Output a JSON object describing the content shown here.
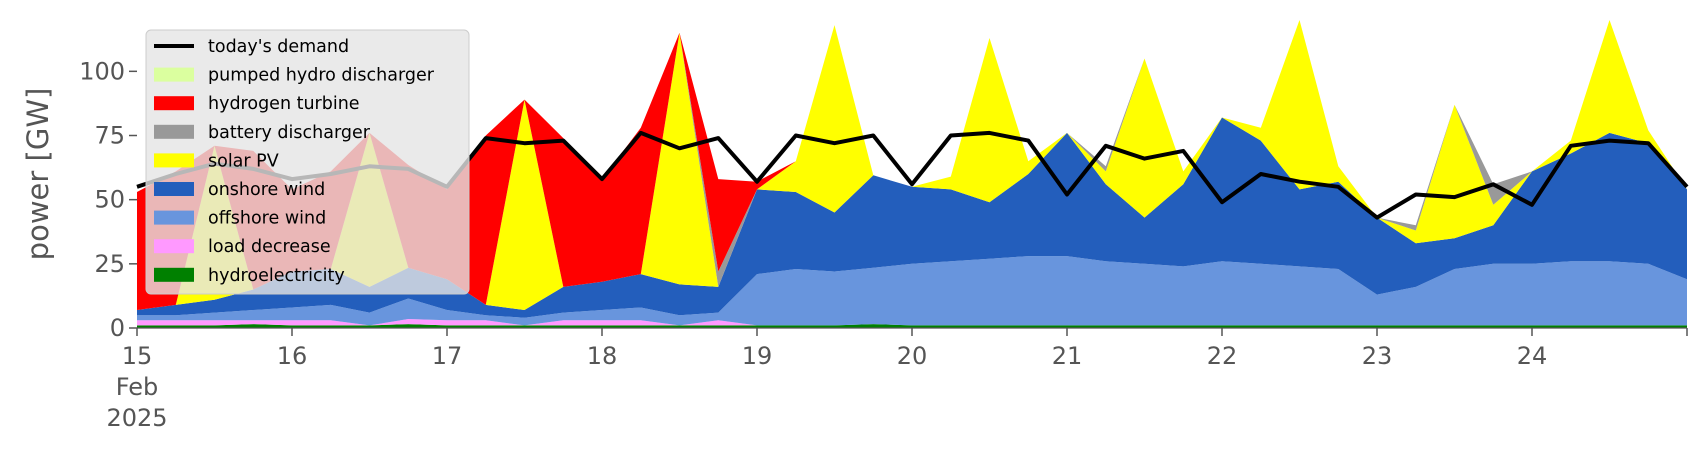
{
  "chart_data": {
    "type": "area",
    "ylabel": "power [GW]",
    "xlabel": "",
    "ylim": [
      0,
      120
    ],
    "xlim": [
      15,
      25
    ],
    "grid": false,
    "legend_position": "top-left",
    "yticks": [
      0,
      25,
      50,
      75,
      100
    ],
    "xticks": [
      {
        "value": 15,
        "lines": [
          "15",
          "Feb",
          "2025"
        ]
      },
      {
        "value": 16,
        "lines": [
          "16"
        ]
      },
      {
        "value": 17,
        "lines": [
          "17"
        ]
      },
      {
        "value": 18,
        "lines": [
          "18"
        ]
      },
      {
        "value": 19,
        "lines": [
          "19"
        ]
      },
      {
        "value": 20,
        "lines": [
          "20"
        ]
      },
      {
        "value": 21,
        "lines": [
          "21"
        ]
      },
      {
        "value": 22,
        "lines": [
          "22"
        ]
      },
      {
        "value": 23,
        "lines": [
          "23"
        ]
      },
      {
        "value": 24,
        "lines": [
          "24"
        ]
      }
    ],
    "x": [
      15.0,
      15.25,
      15.5,
      15.75,
      16.0,
      16.25,
      16.5,
      16.75,
      17.0,
      17.25,
      17.5,
      17.75,
      18.0,
      18.25,
      18.5,
      18.75,
      19.0,
      19.25,
      19.5,
      19.75,
      20.0,
      20.25,
      20.5,
      20.75,
      21.0,
      21.25,
      21.5,
      21.75,
      22.0,
      22.25,
      22.5,
      22.75,
      23.0,
      23.25,
      23.5,
      23.75,
      24.0,
      24.25,
      24.5,
      24.75,
      25.0
    ],
    "series": [
      {
        "name": "hydroelectricity",
        "color": "#008000",
        "values": [
          1,
          1,
          1,
          1.5,
          1,
          1,
          1,
          1.5,
          1,
          1,
          1,
          1,
          1,
          1,
          1,
          1,
          1,
          1,
          1,
          1.5,
          1,
          1,
          1,
          1,
          1,
          1,
          1,
          1,
          1,
          1,
          1,
          1,
          1,
          1,
          1,
          1,
          1,
          1,
          1,
          1,
          1
        ]
      },
      {
        "name": "load decrease",
        "color": "#ff99ff",
        "values": [
          2,
          2,
          2,
          1.5,
          2,
          2,
          0,
          2,
          2,
          2,
          0,
          2,
          2,
          2,
          0,
          2,
          0,
          0,
          0,
          0,
          0,
          0,
          0,
          0,
          0,
          0,
          0,
          0,
          0,
          0,
          0,
          0,
          0,
          0,
          0,
          0,
          0,
          0,
          0,
          0,
          0
        ]
      },
      {
        "name": "offshore wind",
        "color": "#6895dd",
        "values": [
          2,
          2,
          3,
          4,
          5,
          6,
          5,
          8,
          4,
          2,
          3,
          3,
          4,
          5,
          4,
          3,
          20,
          22,
          21,
          22,
          24,
          25,
          26,
          27,
          27,
          25,
          24,
          23,
          25,
          24,
          23,
          22,
          12,
          15,
          22,
          24,
          24,
          25,
          25,
          24,
          18
        ]
      },
      {
        "name": "onshore wind",
        "color": "#235ebc",
        "values": [
          2,
          4,
          5,
          8,
          14,
          14,
          10,
          12,
          12,
          4,
          3,
          10,
          11,
          13,
          12,
          10,
          33,
          30,
          23,
          36,
          30,
          28,
          22,
          32,
          48,
          30,
          18,
          32,
          56,
          48,
          30,
          34,
          30,
          17,
          12,
          15,
          36,
          42,
          50,
          47,
          35
        ]
      },
      {
        "name": "solar PV",
        "color": "#ffff00",
        "values": [
          0,
          0,
          60,
          0,
          0,
          0,
          60,
          0,
          0,
          0,
          82,
          0,
          0,
          0,
          98,
          0,
          0,
          12,
          73,
          0,
          0,
          5,
          64,
          5,
          0,
          5,
          62,
          5,
          0,
          5,
          66,
          6,
          0,
          5,
          52,
          8,
          0,
          5,
          44,
          5,
          0
        ]
      },
      {
        "name": "battery discharger",
        "color": "#999999",
        "values": [
          0,
          0,
          0,
          0,
          0,
          0,
          0,
          0,
          0,
          0,
          0,
          0,
          0,
          0,
          0,
          6,
          0,
          0,
          0,
          0,
          0,
          0,
          0,
          0,
          0,
          2,
          0,
          0,
          0,
          0,
          0,
          0,
          0,
          2,
          0,
          8,
          0,
          0,
          0,
          0,
          0
        ]
      },
      {
        "name": "hydrogen turbine",
        "color": "#ff0000",
        "values": [
          46,
          52,
          0,
          54,
          32,
          38,
          0,
          40,
          35,
          66,
          0,
          58,
          40,
          57,
          0,
          36,
          3,
          0,
          0,
          0,
          0,
          0,
          0,
          0,
          0,
          0,
          0,
          0,
          0,
          0,
          0,
          0,
          0,
          0,
          0,
          0,
          0,
          0,
          0,
          0,
          0
        ]
      },
      {
        "name": "pumped hydro discharger",
        "color": "#dbff9f",
        "values": [
          0,
          0,
          0,
          0,
          0,
          0,
          0,
          0,
          0,
          0,
          0,
          0,
          0,
          0,
          0,
          0,
          0,
          0,
          0,
          0,
          0,
          0,
          0,
          0,
          0,
          0,
          0,
          0,
          0,
          0,
          0,
          0,
          0,
          0,
          0,
          0,
          0,
          0,
          0,
          0,
          0
        ]
      }
    ],
    "demand": {
      "name": "today's demand",
      "color": "#000000",
      "values": [
        55,
        60,
        64,
        62,
        58,
        60,
        63,
        62,
        55,
        74,
        72,
        73,
        58,
        76,
        70,
        74,
        57,
        75,
        72,
        75,
        56,
        75,
        76,
        73,
        52,
        71,
        66,
        69,
        49,
        60,
        57,
        55,
        43,
        52,
        51,
        56,
        48,
        71,
        73,
        72,
        55
      ]
    }
  }
}
